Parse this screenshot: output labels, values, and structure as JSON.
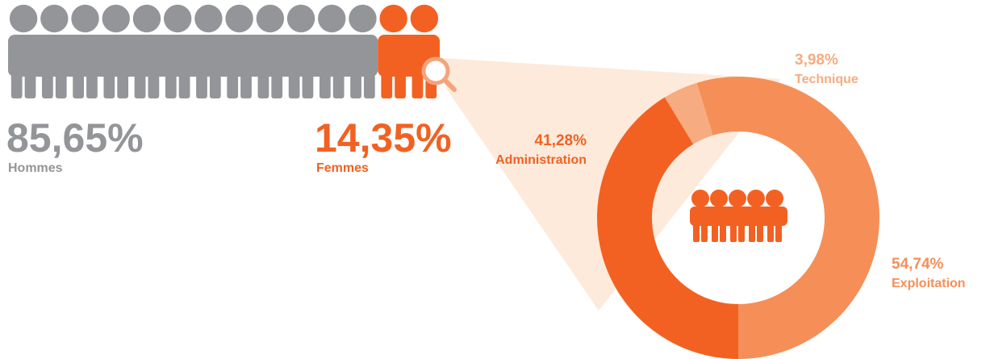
{
  "chart_data": [
    {
      "type": "pictogram",
      "categories": [
        "Hommes",
        "Femmes"
      ],
      "values": [
        85.65,
        14.35
      ],
      "value_labels": [
        "85,65%",
        "14,35%"
      ],
      "colors": [
        "#939598",
        "#f26122"
      ]
    },
    {
      "type": "donut",
      "categories": [
        "Administration",
        "Technique",
        "Exploitation"
      ],
      "values": [
        41.28,
        3.98,
        54.74
      ],
      "value_labels": [
        "41,28%",
        "3,98%",
        "54,74%"
      ],
      "colors": [
        "#f26122",
        "#f7ab80",
        "#f58f57"
      ]
    }
  ]
}
